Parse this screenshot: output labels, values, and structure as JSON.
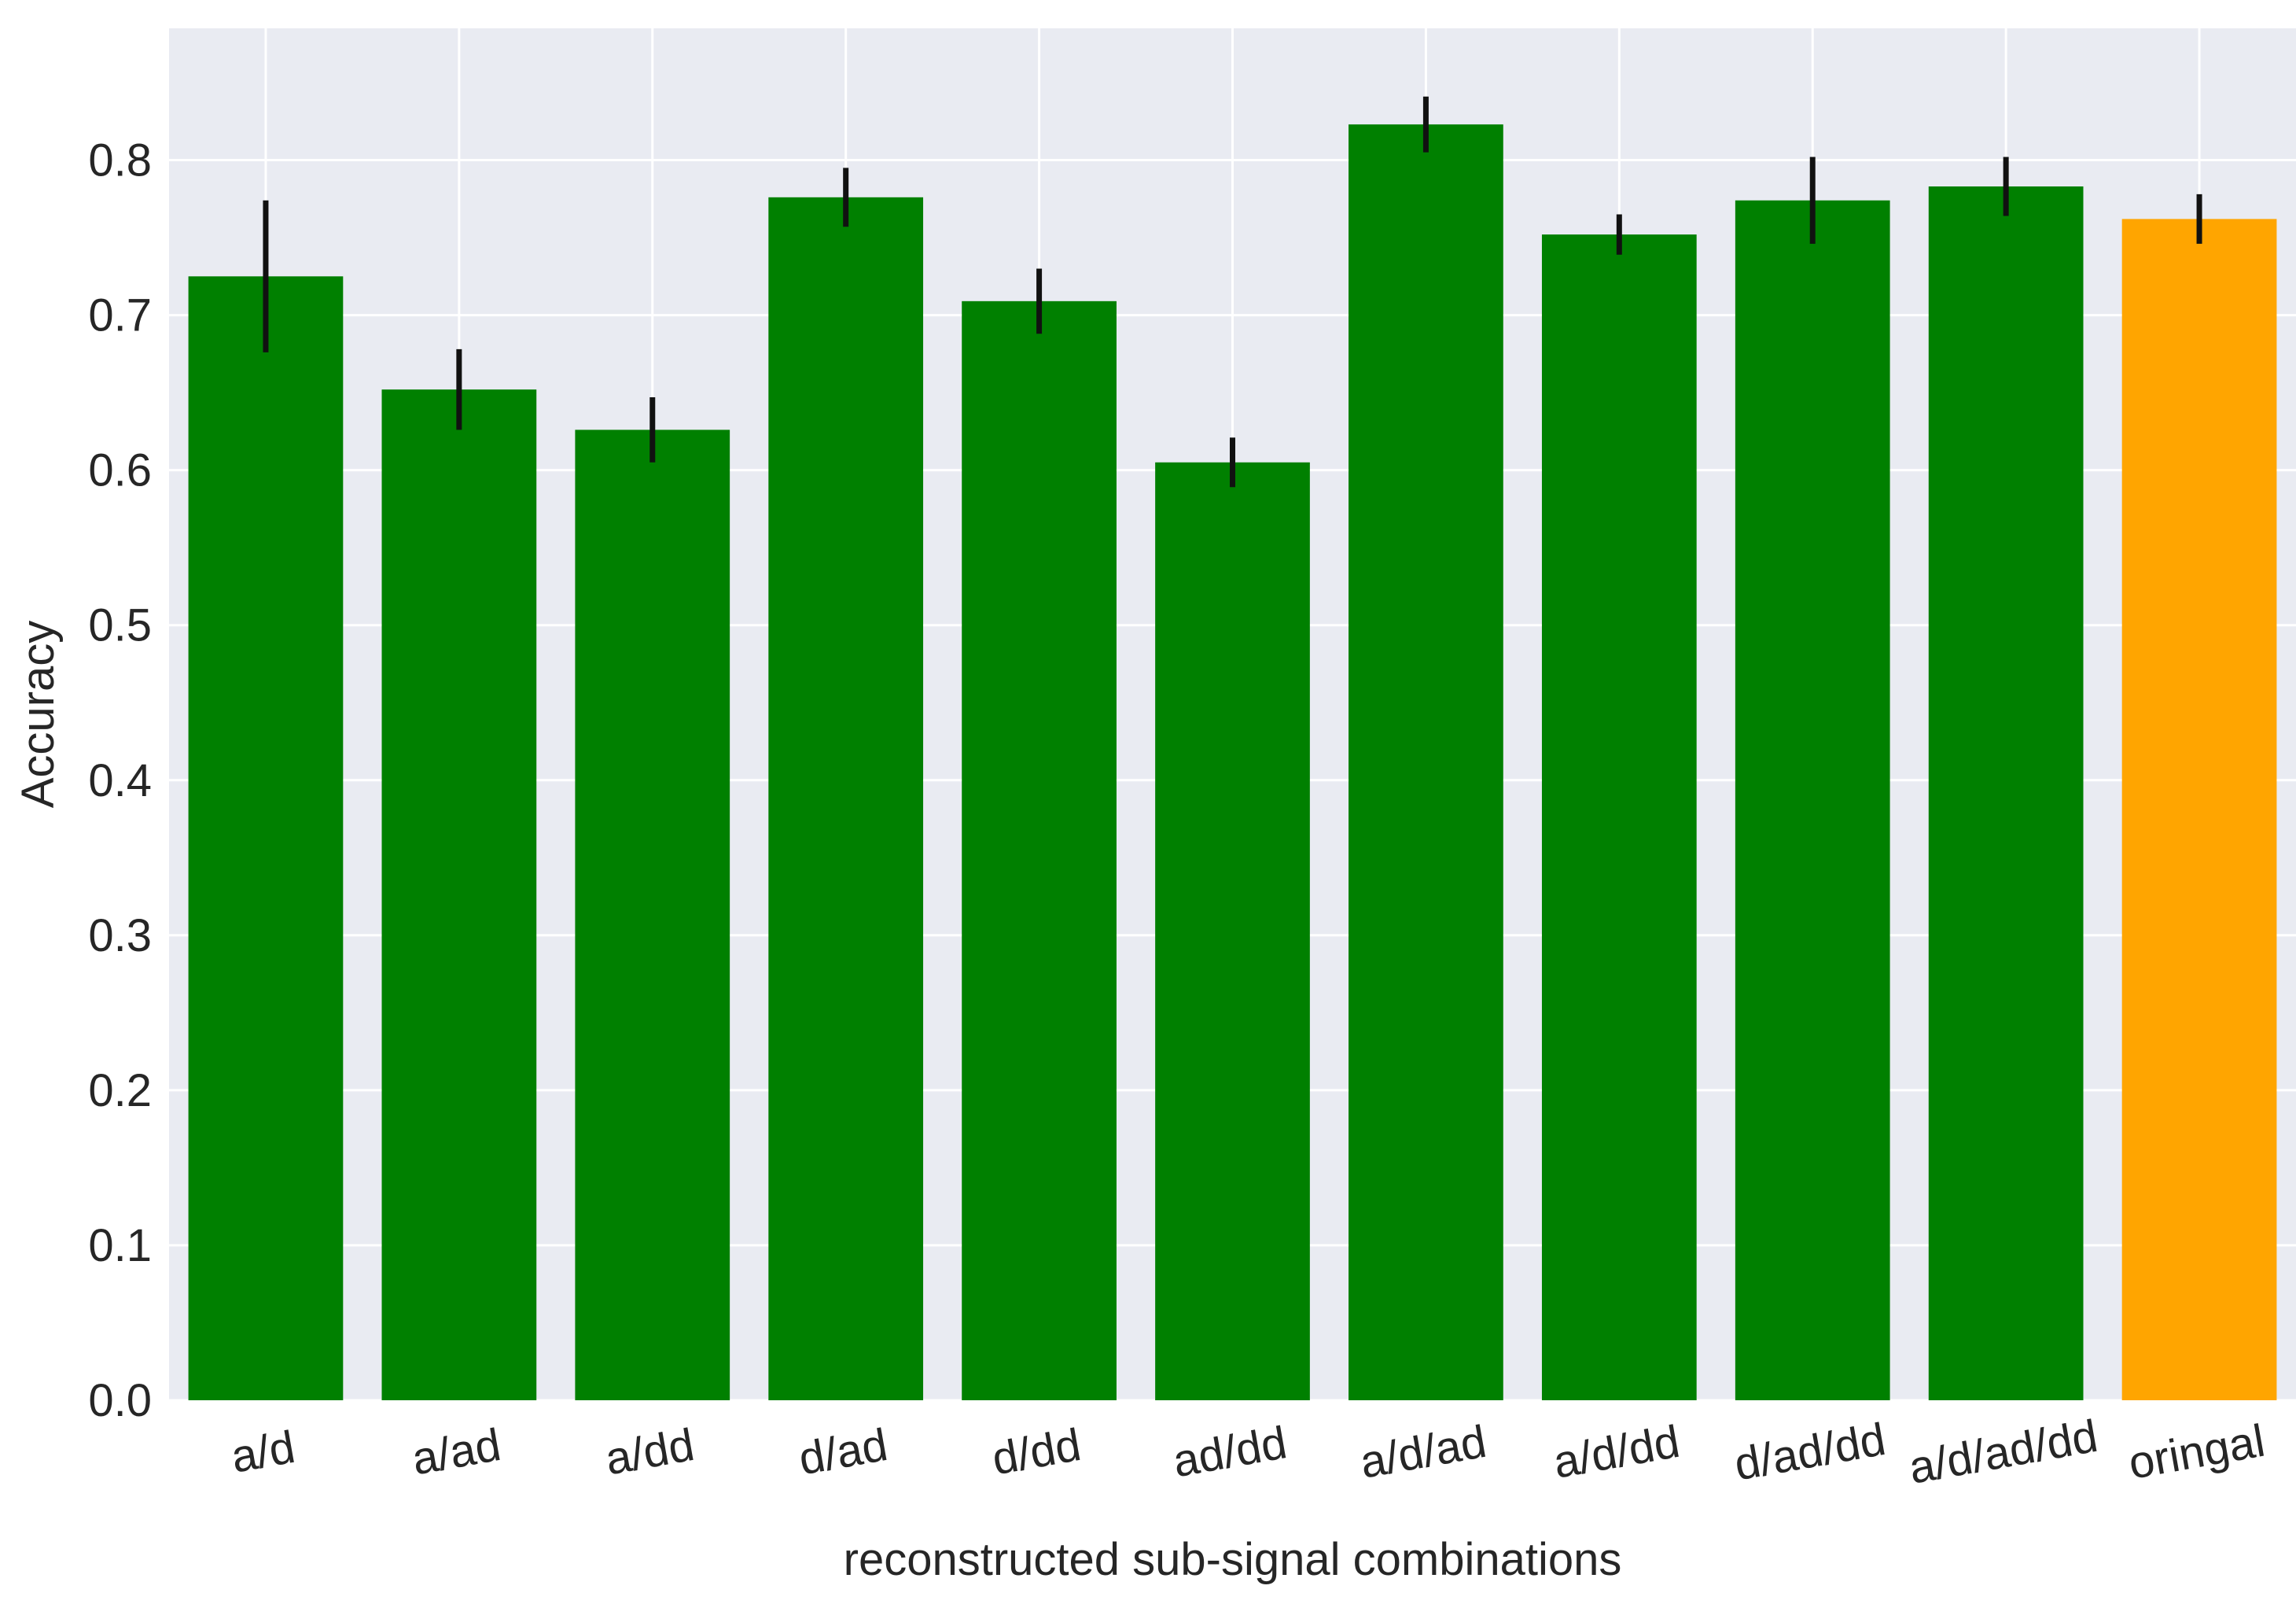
{
  "chart_data": {
    "type": "bar",
    "title": "",
    "xlabel": "reconstructed sub-signal combinations",
    "ylabel": "Accuracy",
    "ylim": [
      0,
      0.885
    ],
    "yticks": [
      "0.0",
      "0.1",
      "0.2",
      "0.3",
      "0.4",
      "0.5",
      "0.6",
      "0.7",
      "0.8"
    ],
    "categories": [
      "a/d",
      "a/ad",
      "a/dd",
      "d/ad",
      "d/dd",
      "ad/dd",
      "a/d/ad",
      "a/d/dd",
      "d/ad/dd",
      "a/d/ad/dd",
      "oringal"
    ],
    "values": [
      0.725,
      0.652,
      0.626,
      0.776,
      0.709,
      0.605,
      0.823,
      0.752,
      0.774,
      0.783,
      0.762
    ],
    "errors": [
      0.049,
      0.026,
      0.021,
      0.019,
      0.021,
      0.016,
      0.018,
      0.013,
      0.028,
      0.019,
      0.016
    ],
    "colors": [
      "#008000",
      "#008000",
      "#008000",
      "#008000",
      "#008000",
      "#008000",
      "#008000",
      "#008000",
      "#008000",
      "#008000",
      "#ffa500"
    ],
    "error_color": "#111111",
    "background": "#e9ebf2",
    "grid": true,
    "grid_color": "#ffffff",
    "xtick_rotation": -10
  }
}
